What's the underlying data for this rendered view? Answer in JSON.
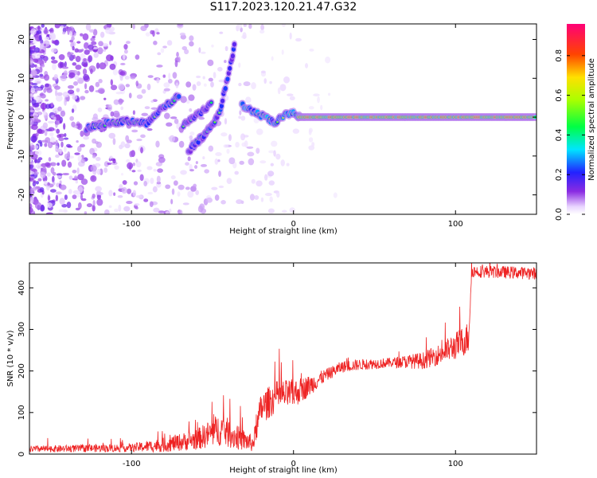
{
  "figure_title": "S117.2023.120.21.47.G32",
  "colors": {
    "snr_line": "#ee2222",
    "frame": "#000000",
    "colorbar_high": "#ff0077",
    "colorbar_low": "#ffffff"
  },
  "chart_data": [
    {
      "type": "heatmap",
      "xlabel": "Height of straight line (km)",
      "ylabel": "Frequency (Hz)",
      "xlim": [
        -163,
        150
      ],
      "ylim": [
        -25,
        24
      ],
      "x_ticks": [
        -100,
        0,
        100
      ],
      "y_ticks": [
        -20,
        -10,
        0,
        10,
        20
      ],
      "grid": false,
      "colorbar": {
        "label": "Normalized spectral amplitude",
        "ticks": [
          0.0,
          0.2,
          0.4,
          0.6,
          0.8
        ],
        "range": [
          0,
          0.96
        ],
        "colormap": "rainbow: white-purple-blue-cyan-green-yellow-red-pink"
      },
      "signal_tracks": [
        {
          "name": "",
          "points": [
            [
              -128,
              -3
            ],
            [
              -115,
              -1.5
            ],
            [
              -100,
              -1
            ],
            [
              -90,
              -1.5
            ],
            [
              -85,
              1
            ],
            [
              -75,
              4
            ],
            [
              -70,
              6
            ]
          ],
          "amplitude": 0.35
        },
        {
          "name": "",
          "points": [
            [
              -68,
              -2
            ],
            [
              -62,
              0
            ],
            [
              -55,
              2
            ],
            [
              -50,
              4
            ]
          ],
          "amplitude": 0.3
        },
        {
          "name": "",
          "points": [
            [
              -65,
              -9
            ],
            [
              -58,
              -6
            ],
            [
              -52,
              -3
            ],
            [
              -47,
              0
            ]
          ],
          "amplitude": 0.3
        },
        {
          "name": "",
          "points": [
            [
              -63,
              -7.5
            ],
            [
              -56,
              -5
            ],
            [
              -50,
              -2
            ],
            [
              -45,
              2
            ],
            [
              -42,
              8
            ],
            [
              -38,
              15
            ],
            [
              -36,
              20
            ]
          ],
          "amplitude": 0.35
        },
        {
          "name": "",
          "points": [
            [
              -32,
              3
            ],
            [
              -25,
              1.5
            ],
            [
              -18,
              0
            ],
            [
              -12,
              -1.5
            ],
            [
              -5,
              0.5
            ],
            [
              0,
              1
            ],
            [
              5,
              0
            ]
          ],
          "amplitude": 0.45
        },
        {
          "name": "",
          "points": [
            [
              3,
              0
            ],
            [
              40,
              0
            ],
            [
              80,
              0
            ],
            [
              120,
              0
            ],
            [
              150,
              0
            ]
          ],
          "amplitude": 0.9
        }
      ]
    },
    {
      "type": "line",
      "xlabel": "Height of straight line (km)",
      "ylabel": "SNR (10 * v/v)",
      "xlim": [
        -163,
        150
      ],
      "ylim": [
        0,
        460
      ],
      "x_ticks": [
        -100,
        0,
        100
      ],
      "y_ticks": [
        0,
        100,
        200,
        300,
        400
      ],
      "grid": false,
      "series": [
        {
          "name": "",
          "color": "#ee2222",
          "mean_curve": [
            [
              -163,
              12
            ],
            [
              -100,
              15
            ],
            [
              -80,
              22
            ],
            [
              -60,
              35
            ],
            [
              -45,
              60
            ],
            [
              -35,
              40
            ],
            [
              -25,
              25
            ],
            [
              -20,
              110
            ],
            [
              -10,
              140
            ],
            [
              0,
              145
            ],
            [
              10,
              165
            ],
            [
              20,
              190
            ],
            [
              30,
              210
            ],
            [
              40,
              215
            ],
            [
              60,
              220
            ],
            [
              80,
              225
            ],
            [
              90,
              240
            ],
            [
              100,
              260
            ],
            [
              108,
              280
            ],
            [
              110,
              440
            ],
            [
              150,
              435
            ]
          ],
          "noise_amplitude": [
            [
              -163,
              8
            ],
            [
              -100,
              10
            ],
            [
              -60,
              25
            ],
            [
              -45,
              40
            ],
            [
              -25,
              20
            ],
            [
              -20,
              40
            ],
            [
              0,
              35
            ],
            [
              20,
              15
            ],
            [
              60,
              12
            ],
            [
              90,
              25
            ],
            [
              108,
              40
            ],
            [
              110,
              15
            ],
            [
              150,
              15
            ]
          ]
        }
      ]
    }
  ]
}
